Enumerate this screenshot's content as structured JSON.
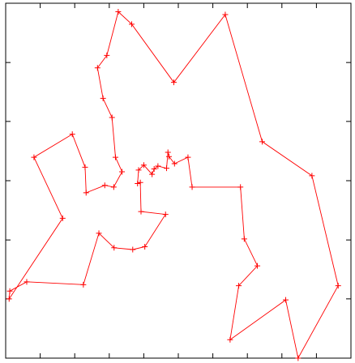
{
  "chart_data": {
    "type": "line",
    "title": "",
    "xlabel": "",
    "ylabel": "",
    "xlim": [
      0,
      1
    ],
    "ylim": [
      0,
      1
    ],
    "grid": false,
    "legend": "none",
    "axis_tick_labels": false,
    "x_major_ticks": [
      0.1,
      0.2,
      0.3,
      0.4,
      0.5,
      0.6,
      0.7,
      0.8,
      0.9
    ],
    "y_major_ticks": [
      0.167,
      0.333,
      0.5,
      0.667,
      0.833
    ],
    "closed": true,
    "marker": "+",
    "color": "#ff0000",
    "series": [
      {
        "name": "",
        "points": [
          [
            0.326,
            0.976
          ],
          [
            0.365,
            0.941
          ],
          [
            0.487,
            0.777
          ],
          [
            0.636,
            0.968
          ],
          [
            0.743,
            0.61
          ],
          [
            0.887,
            0.514
          ],
          [
            0.963,
            0.204
          ],
          [
            0.847,
            0.0
          ],
          [
            0.811,
            0.164
          ],
          [
            0.65,
            0.052
          ],
          [
            0.675,
            0.204
          ],
          [
            0.729,
            0.26
          ],
          [
            0.691,
            0.336
          ],
          [
            0.68,
            0.482
          ],
          [
            0.54,
            0.482
          ],
          [
            0.528,
            0.566
          ],
          [
            0.489,
            0.548
          ],
          [
            0.473,
            0.568
          ],
          [
            0.47,
            0.58
          ],
          [
            0.466,
            0.535
          ],
          [
            0.441,
            0.541
          ],
          [
            0.43,
            0.533
          ],
          [
            0.424,
            0.518
          ],
          [
            0.4,
            0.544
          ],
          [
            0.385,
            0.53
          ],
          [
            0.382,
            0.492
          ],
          [
            0.39,
            0.495
          ],
          [
            0.392,
            0.413
          ],
          [
            0.463,
            0.405
          ],
          [
            0.403,
            0.314
          ],
          [
            0.368,
            0.306
          ],
          [
            0.314,
            0.311
          ],
          [
            0.27,
            0.352
          ],
          [
            0.225,
            0.207
          ],
          [
            0.061,
            0.215
          ],
          [
            0.012,
            0.189
          ],
          [
            0.01,
            0.167
          ],
          [
            0.165,
            0.394
          ],
          [
            0.082,
            0.566
          ],
          [
            0.193,
            0.631
          ],
          [
            0.23,
            0.538
          ],
          [
            0.233,
            0.466
          ],
          [
            0.287,
            0.487
          ],
          [
            0.313,
            0.482
          ],
          [
            0.337,
            0.525
          ],
          [
            0.318,
            0.566
          ],
          [
            0.308,
            0.678
          ],
          [
            0.282,
            0.732
          ],
          [
            0.266,
            0.818
          ],
          [
            0.293,
            0.853
          ]
        ]
      }
    ]
  }
}
